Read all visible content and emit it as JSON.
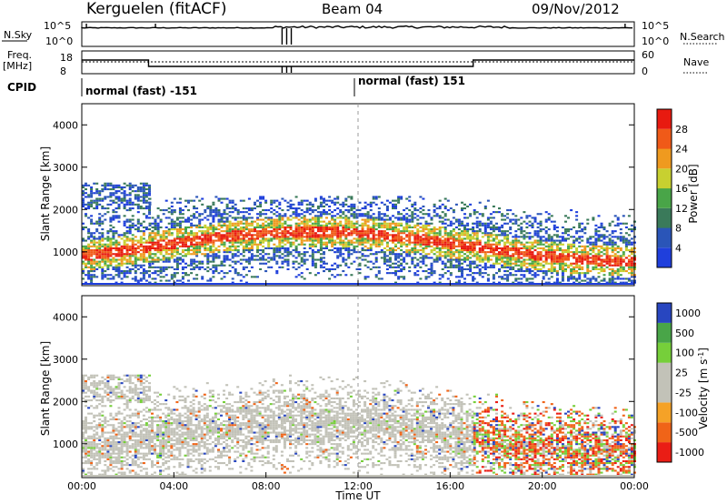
{
  "header": {
    "station": "Kerguelen (fitACF)",
    "beam": "Beam 04",
    "date": "09/Nov/2012"
  },
  "top_panels": {
    "nsky_label": "N.Sky",
    "nsearch_label": "N.Search",
    "nsky_ticks": [
      "10^5",
      "10^0"
    ],
    "nsearch_ticks": [
      "10^5",
      "10^0"
    ],
    "freq_label": "Freq.",
    "freq_unit": "[MHz]",
    "freq_ticks": [
      "18",
      "8"
    ],
    "nave_label": "Nave",
    "nave_ticks": [
      "60",
      "0"
    ],
    "cpid_label": "CPID",
    "cpid_segments": [
      "normal (fast) -151",
      "normal (fast) 151"
    ]
  },
  "colors": {
    "power": [
      "#1f3fdc",
      "#2a55b8",
      "#3a7a5a",
      "#49a548",
      "#c8d030",
      "#ef9a1f",
      "#f05a18",
      "#e81a10"
    ],
    "velocity": [
      "#ea1d15",
      "#f06418",
      "#f5a227",
      "#c2c2b8",
      "#c2c2b8",
      "#76cf3a",
      "#49a548",
      "#2846c0"
    ]
  },
  "chart_data": [
    {
      "type": "heatmap",
      "title": "",
      "xlabel": "",
      "ylabel": "Slant Range [km]",
      "x_range_hours": [
        0,
        24
      ],
      "ylim": [
        200,
        4500
      ],
      "x_ticks": [
        "00:00",
        "04:00",
        "08:00",
        "12:00",
        "16:00",
        "20:00",
        "00:00"
      ],
      "y_ticks": [
        "1000",
        "2000",
        "3000",
        "4000"
      ],
      "colorbar": {
        "label": "Power [dB]",
        "ticks": [
          "4",
          "8",
          "12",
          "16",
          "20",
          "24",
          "28"
        ],
        "range": [
          0,
          30
        ]
      },
      "echo_regions": [
        {
          "t_start": 0.0,
          "t_end": 2.9,
          "range_min": 250,
          "range_max": 2600,
          "peak_db": 20
        },
        {
          "t_start": 2.9,
          "t_end": 17.0,
          "range_min": 250,
          "range_max": 2300,
          "peak_db": 30
        },
        {
          "t_start": 17.0,
          "t_end": 24.0,
          "range_min": 250,
          "range_max": 2300,
          "peak_db": 20
        }
      ]
    },
    {
      "type": "heatmap",
      "title": "",
      "xlabel": "Time UT",
      "ylabel": "Slant Range [km]",
      "x_range_hours": [
        0,
        24
      ],
      "ylim": [
        200,
        4500
      ],
      "x_ticks": [
        "00:00",
        "04:00",
        "08:00",
        "12:00",
        "16:00",
        "20:00",
        "00:00"
      ],
      "y_ticks": [
        "1000",
        "2000",
        "3000",
        "4000"
      ],
      "colorbar": {
        "label": "Velocity [m s^-1]",
        "ticks": [
          "-1000",
          "-500",
          "-100",
          "-25",
          "25",
          "100",
          "500",
          "1000"
        ],
        "range": [
          -1200,
          1200
        ]
      },
      "echo_regions": [
        {
          "t_start": 0.0,
          "t_end": 17.0,
          "range_min": 250,
          "range_max": 2600,
          "dominant": "ground scatter"
        },
        {
          "t_start": 17.0,
          "t_end": 24.0,
          "range_min": 250,
          "range_max": 2300,
          "dominant": "mixed"
        }
      ]
    }
  ]
}
